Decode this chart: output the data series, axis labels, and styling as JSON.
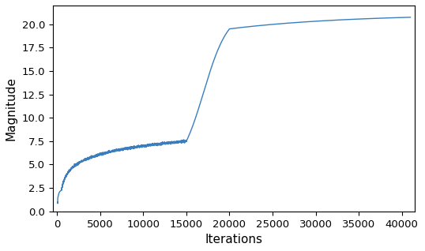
{
  "title": "",
  "xlabel": "Iterations",
  "ylabel": "Magnitude",
  "line_color": "#3a7ebf",
  "line_width": 1.0,
  "xlim": [
    -500,
    41500
  ],
  "ylim": [
    0,
    22
  ],
  "xticks": [
    0,
    5000,
    10000,
    15000,
    20000,
    25000,
    30000,
    35000,
    40000
  ],
  "yticks": [
    0.0,
    2.5,
    5.0,
    7.5,
    10.0,
    12.5,
    15.0,
    17.5,
    20.0
  ],
  "figsize": [
    5.38,
    3.18
  ],
  "dpi": 100
}
